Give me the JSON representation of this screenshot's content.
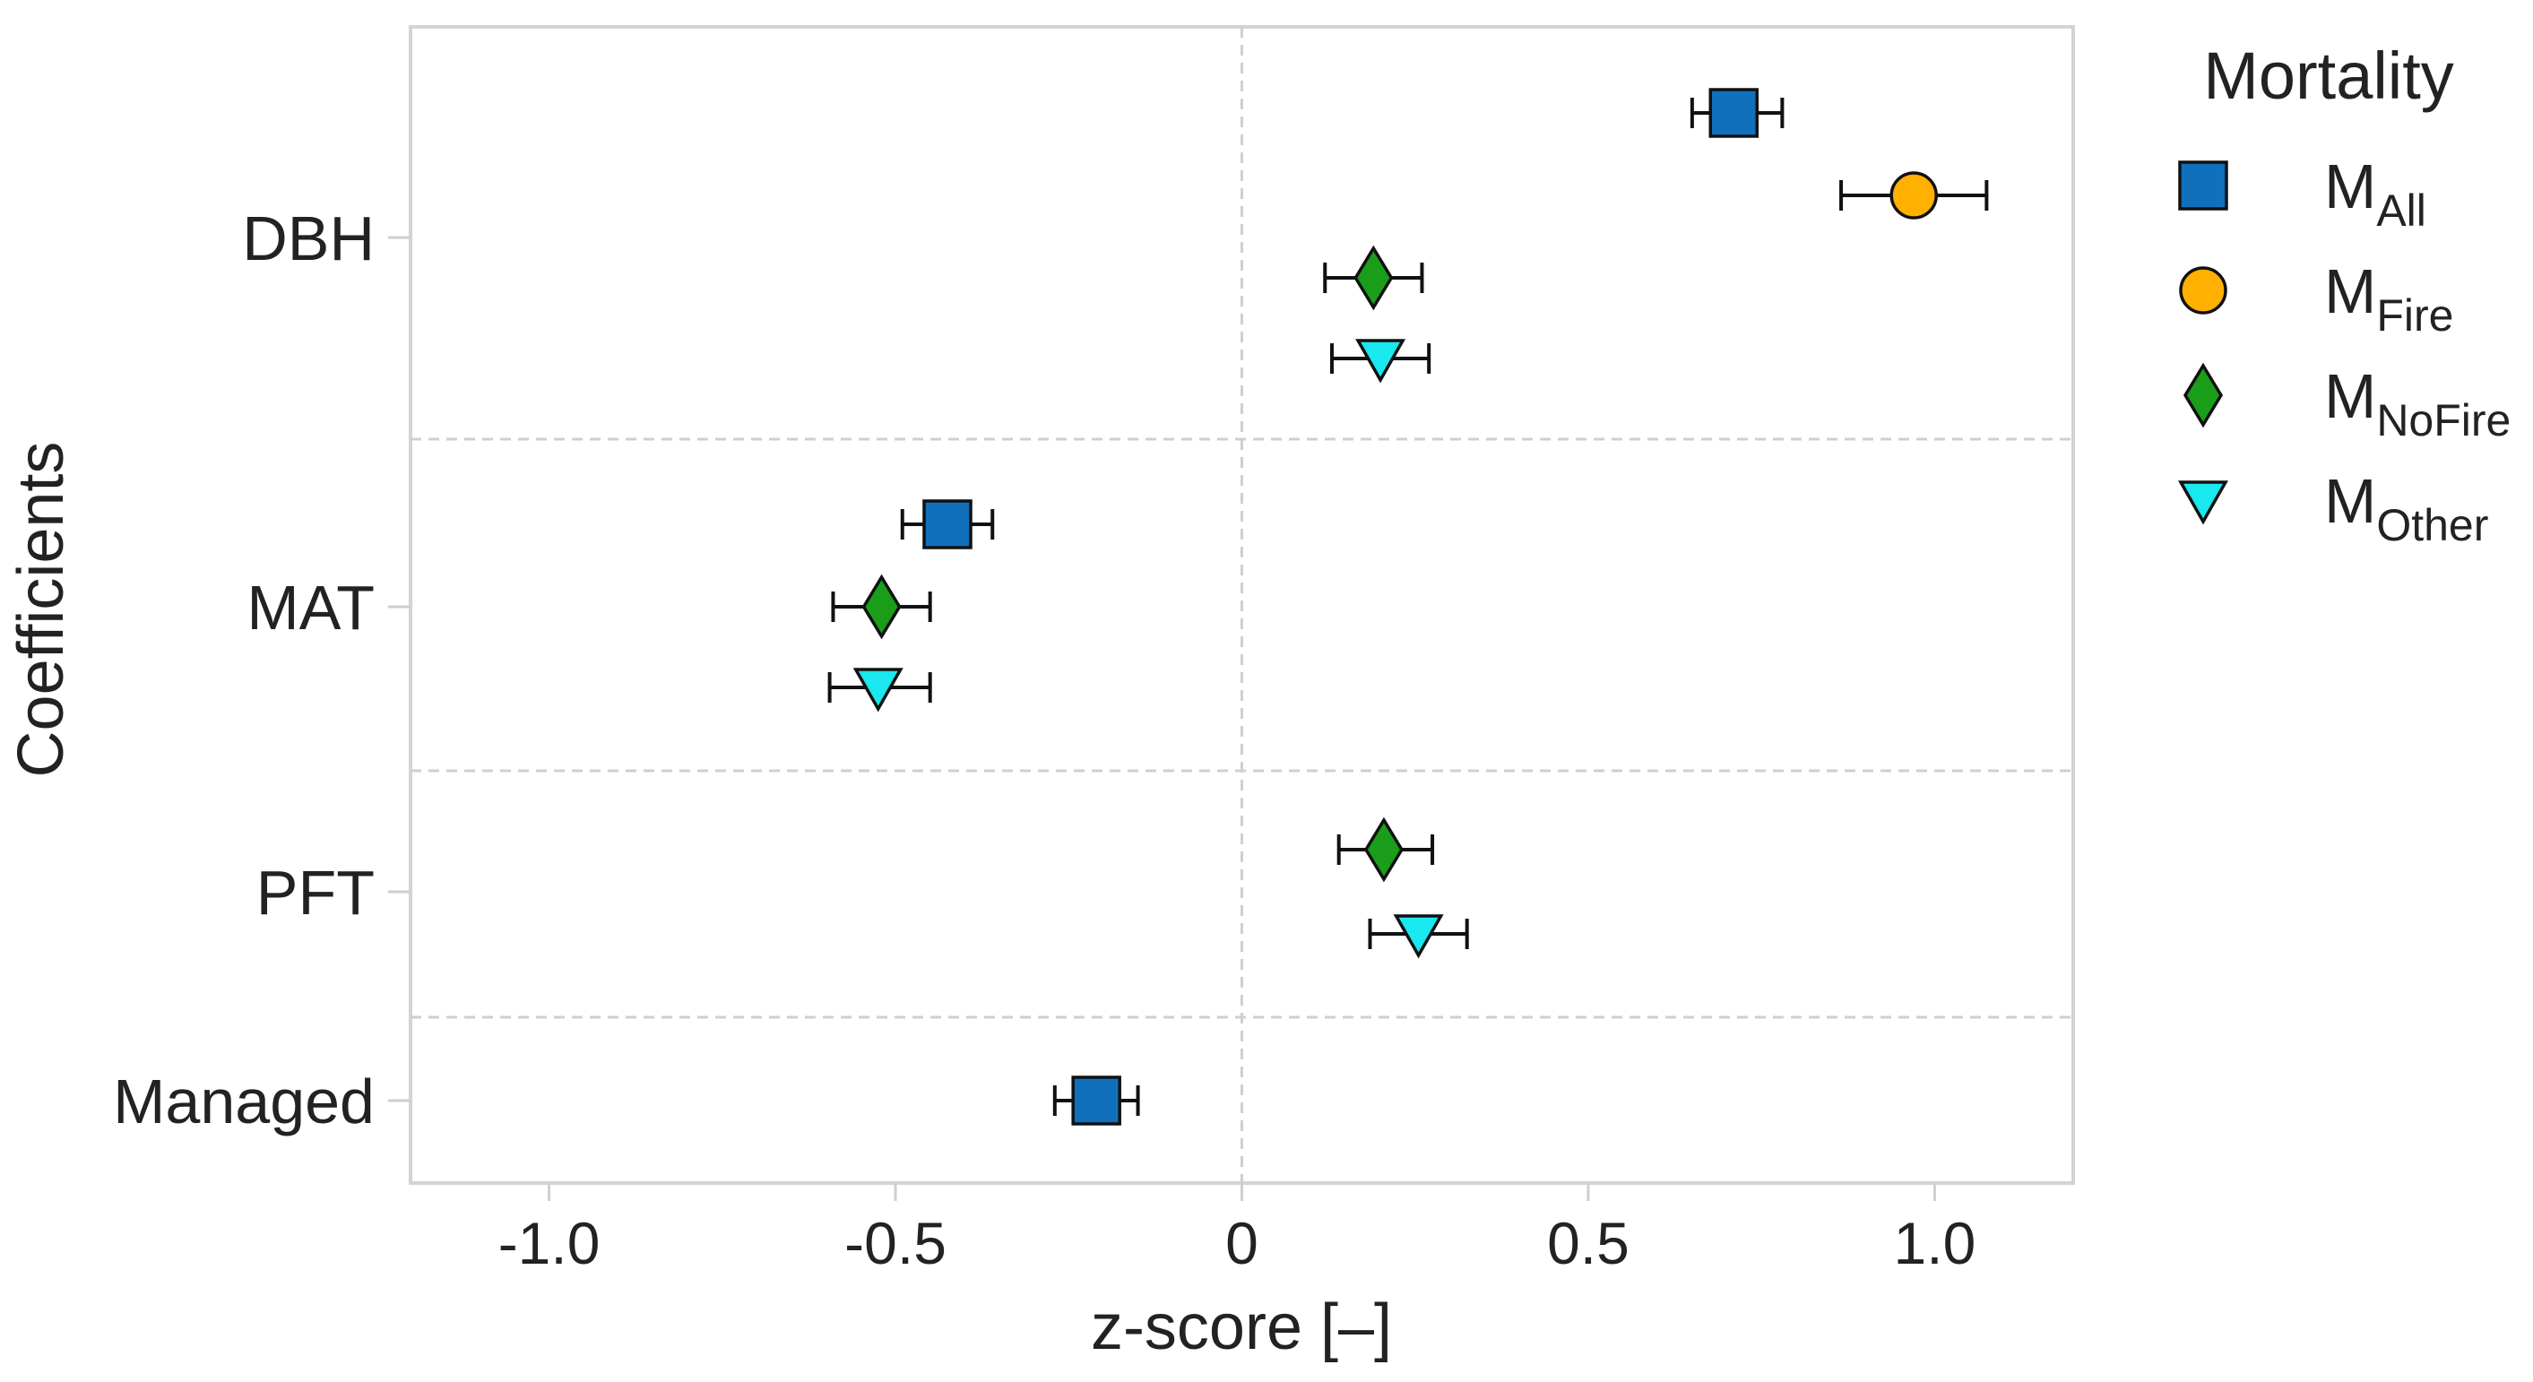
{
  "chart_data": {
    "type": "scatter",
    "subtype": "coefficient-plot-with-error-bars",
    "xlabel": "z-score [–]",
    "ylabel": "Coefficients",
    "xlim": [
      -1.2,
      1.2
    ],
    "xticks": [
      -1.0,
      -0.5,
      0,
      0.5,
      1.0
    ],
    "xtick_labels": [
      "-1.0",
      "-0.5",
      "0",
      "0.5",
      "1.0"
    ],
    "grid": true,
    "categories": [
      "DBH",
      "MAT",
      "PFT",
      "Managed"
    ],
    "legend": {
      "title": "Mortality",
      "placement": "outside-right",
      "entries": [
        {
          "base": "M",
          "sub": "All"
        },
        {
          "base": "M",
          "sub": "Fire"
        },
        {
          "base": "M",
          "sub": "NoFire"
        },
        {
          "base": "M",
          "sub": "Other"
        }
      ]
    },
    "series": [
      {
        "name": "MAll",
        "marker": "square",
        "color": "#1170bb",
        "points": [
          {
            "category": "DBH",
            "value": 0.71,
            "lower": 0.65,
            "upper": 0.78
          },
          {
            "category": "MAT",
            "value": -0.425,
            "lower": -0.49,
            "upper": -0.36
          },
          {
            "category": "Managed",
            "value": -0.21,
            "lower": -0.27,
            "upper": -0.15
          }
        ]
      },
      {
        "name": "MFire",
        "marker": "circle",
        "color": "#ffb000",
        "points": [
          {
            "category": "DBH",
            "value": 0.97,
            "lower": 0.865,
            "upper": 1.075
          }
        ]
      },
      {
        "name": "MNoFire",
        "marker": "diamond",
        "color": "#1a9e1a",
        "points": [
          {
            "category": "DBH",
            "value": 0.19,
            "lower": 0.12,
            "upper": 0.26
          },
          {
            "category": "MAT",
            "value": -0.52,
            "lower": -0.59,
            "upper": -0.45
          },
          {
            "category": "PFT",
            "value": 0.205,
            "lower": 0.14,
            "upper": 0.275
          }
        ]
      },
      {
        "name": "MOther",
        "marker": "triangle-down",
        "color": "#19e8ee",
        "points": [
          {
            "category": "DBH",
            "value": 0.2,
            "lower": 0.13,
            "upper": 0.27
          },
          {
            "category": "MAT",
            "value": -0.525,
            "lower": -0.595,
            "upper": -0.45
          },
          {
            "category": "PFT",
            "value": 0.255,
            "lower": 0.185,
            "upper": 0.325
          }
        ]
      }
    ]
  }
}
